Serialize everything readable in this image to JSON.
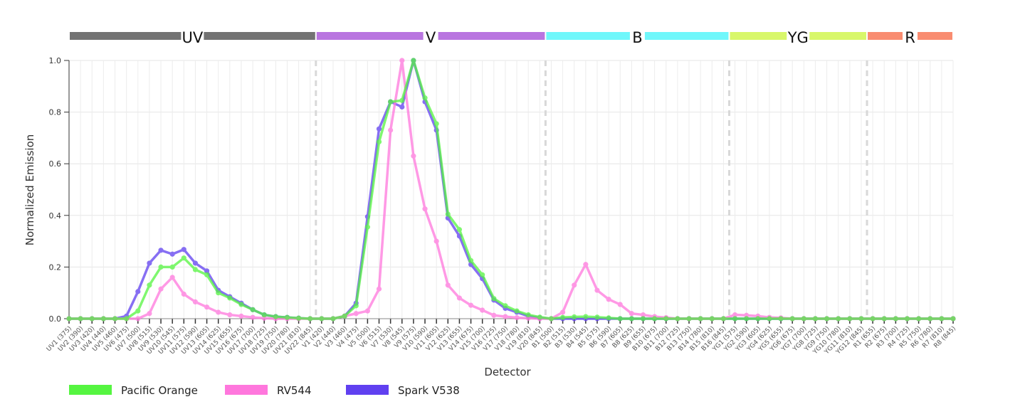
{
  "chart_data": {
    "type": "line",
    "xlabel": "Detector",
    "ylabel": "Normalized Emission",
    "ylim": [
      0,
      1.0
    ],
    "yticks": [
      "0.0",
      "0.2",
      "0.4",
      "0.6",
      "0.8",
      "1.0"
    ],
    "grid": true,
    "legend_placement": "bottom-left",
    "lasers": [
      {
        "name": "UV",
        "color": "#737373",
        "count": 22
      },
      {
        "name": "V",
        "color": "#b975e0",
        "count": 20
      },
      {
        "name": "B",
        "color": "#6ff7fb",
        "count": 16
      },
      {
        "name": "YG",
        "color": "#d8f76a",
        "count": 12
      },
      {
        "name": "R",
        "color": "#f98c70",
        "count": 8
      }
    ],
    "categories": [
      "UV1 (375)",
      "UV2 (390)",
      "UV3 (420)",
      "UV4 (440)",
      "UV5 (460)",
      "UV6 (475)",
      "UV7 (500)",
      "UV8 (515)",
      "UV9 (530)",
      "UV10 (545)",
      "UV11 (575)",
      "UV12 (590)",
      "UV13 (605)",
      "UV14 (625)",
      "UV15 (655)",
      "UV16 (675)",
      "UV17 (700)",
      "UV18 (725)",
      "UV19 (750)",
      "UV20 (780)",
      "UV21 (810)",
      "UV22 (845)",
      "V1 (420)",
      "V2 (440)",
      "V3 (460)",
      "V4 (475)",
      "V5 (500)",
      "V6 (515)",
      "V7 (530)",
      "V8 (545)",
      "V9 (575)",
      "V10 (590)",
      "V11 (605)",
      "V12 (625)",
      "V13 (655)",
      "V14 (675)",
      "V15 (700)",
      "V16 (725)",
      "V17 (750)",
      "V18 (780)",
      "V19 (810)",
      "V20 (845)",
      "B1 (500)",
      "B2 (515)",
      "B3 (530)",
      "B4 (545)",
      "B5 (575)",
      "B6 (590)",
      "B7 (605)",
      "B8 (625)",
      "B9 (655)",
      "B10 (675)",
      "B11 (700)",
      "B12 (725)",
      "B13 (750)",
      "B14 (780)",
      "B15 (810)",
      "B16 (845)",
      "YG1 (575)",
      "YG2 (590)",
      "YG3 (605)",
      "YG4 (625)",
      "YG5 (655)",
      "YG6 (675)",
      "YG7 (700)",
      "YG8 (725)",
      "YG9 (750)",
      "YG10 (780)",
      "YG11 (810)",
      "YG12 (845)",
      "R1 (655)",
      "R2 (675)",
      "R3 (700)",
      "R4 (725)",
      "R5 (750)",
      "R6 (780)",
      "R7 (810)",
      "R8 (845)"
    ],
    "series": [
      {
        "name": "Spark V538",
        "color": "#6040f0",
        "values": [
          0,
          0,
          0,
          0,
          0,
          0.01,
          0.105,
          0.215,
          0.265,
          0.25,
          0.268,
          0.215,
          0.185,
          0.11,
          0.085,
          0.06,
          0.035,
          0.015,
          0.008,
          0.005,
          0.002,
          0,
          0,
          0,
          0.01,
          0.06,
          0.395,
          0.735,
          0.84,
          0.82,
          1.0,
          0.84,
          0.73,
          0.39,
          0.32,
          0.21,
          0.155,
          0.072,
          0.04,
          0.025,
          0.01,
          0.003,
          0,
          0,
          0,
          0,
          0,
          0,
          0,
          0,
          0,
          0,
          0,
          0,
          0,
          0,
          0,
          0,
          0,
          0,
          0,
          0,
          0,
          0,
          0,
          0,
          0,
          0,
          0,
          0,
          0,
          0,
          0,
          0,
          0,
          0,
          0,
          0
        ]
      },
      {
        "name": "RV544",
        "color": "#ff77dd",
        "values": [
          0,
          0,
          0,
          0,
          0,
          0,
          0,
          0.02,
          0.115,
          0.16,
          0.095,
          0.065,
          0.045,
          0.025,
          0.015,
          0.01,
          0.005,
          0.002,
          0,
          0,
          0,
          0,
          0,
          0,
          0.01,
          0.02,
          0.03,
          0.115,
          0.73,
          1.0,
          0.63,
          0.425,
          0.3,
          0.13,
          0.08,
          0.052,
          0.033,
          0.013,
          0.008,
          0.004,
          0.002,
          0,
          0,
          0.025,
          0.13,
          0.21,
          0.11,
          0.075,
          0.055,
          0.02,
          0.015,
          0.008,
          0.004,
          0,
          0,
          0,
          0,
          0,
          0.015,
          0.013,
          0.01,
          0.005,
          0.003,
          0,
          0,
          0,
          0,
          0,
          0,
          0,
          0,
          0,
          0,
          0,
          0,
          0,
          0,
          0
        ]
      },
      {
        "name": "Pacific Orange",
        "color": "#55f540",
        "values": [
          0,
          0,
          0,
          0,
          0,
          0,
          0.03,
          0.13,
          0.2,
          0.2,
          0.235,
          0.19,
          0.17,
          0.1,
          0.08,
          0.055,
          0.035,
          0.015,
          0.008,
          0.005,
          0.002,
          0,
          0,
          0,
          0.01,
          0.05,
          0.355,
          0.685,
          0.84,
          0.845,
          1.0,
          0.855,
          0.755,
          0.405,
          0.345,
          0.225,
          0.17,
          0.078,
          0.05,
          0.03,
          0.015,
          0.006,
          0,
          0.005,
          0.007,
          0.008,
          0.006,
          0.003,
          0,
          0,
          0,
          0,
          0,
          0,
          0,
          0,
          0,
          0,
          0,
          0,
          0,
          0,
          0,
          0,
          0,
          0,
          0,
          0,
          0,
          0,
          0,
          0,
          0,
          0,
          0,
          0,
          0,
          0
        ]
      }
    ],
    "legend": [
      {
        "label": "Pacific Orange",
        "color": "#55f540"
      },
      {
        "label": "RV544",
        "color": "#ff77dd"
      },
      {
        "label": "Spark V538",
        "color": "#6040f0"
      }
    ]
  }
}
